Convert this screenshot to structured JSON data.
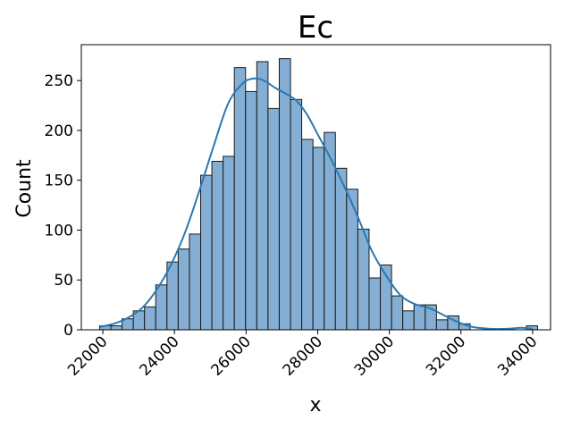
{
  "chart_data": {
    "type": "bar",
    "title": "Ec",
    "xlabel": "x",
    "ylabel": "Count",
    "xlim": [
      21400,
      34500
    ],
    "ylim": [
      0,
      286
    ],
    "xticks": [
      22000,
      24000,
      26000,
      28000,
      30000,
      32000,
      34000
    ],
    "xtick_labels": [
      "22000",
      "24000",
      "26000",
      "28000",
      "30000",
      "32000",
      "34000"
    ],
    "yticks": [
      0,
      50,
      100,
      150,
      200,
      250
    ],
    "ytick_labels": [
      "0",
      "50",
      "100",
      "150",
      "200",
      "250"
    ],
    "bin_start": 21910,
    "bin_width": 313.5,
    "values": [
      4,
      4,
      11,
      19,
      23,
      45,
      68,
      81,
      96,
      155,
      169,
      174,
      263,
      239,
      269,
      222,
      272,
      231,
      191,
      183,
      198,
      162,
      141,
      101,
      52,
      65,
      34,
      19,
      25,
      25,
      10,
      14,
      6,
      0,
      0,
      0,
      0,
      0,
      4
    ],
    "kde": [
      [
        21910,
        3
      ],
      [
        22300,
        6
      ],
      [
        22700,
        12
      ],
      [
        23100,
        22
      ],
      [
        23500,
        40
      ],
      [
        23900,
        65
      ],
      [
        24300,
        98
      ],
      [
        24700,
        140
      ],
      [
        25100,
        185
      ],
      [
        25500,
        227
      ],
      [
        25900,
        247
      ],
      [
        26200,
        252
      ],
      [
        26500,
        250
      ],
      [
        26800,
        243
      ],
      [
        27100,
        237
      ],
      [
        27400,
        230
      ],
      [
        27700,
        216
      ],
      [
        28000,
        196
      ],
      [
        28300,
        176
      ],
      [
        28700,
        147
      ],
      [
        29100,
        115
      ],
      [
        29500,
        80
      ],
      [
        29900,
        55
      ],
      [
        30300,
        35
      ],
      [
        30700,
        26
      ],
      [
        31100,
        22
      ],
      [
        31500,
        15
      ],
      [
        31900,
        8
      ],
      [
        32300,
        3
      ],
      [
        32800,
        1
      ],
      [
        33300,
        1
      ],
      [
        33700,
        2
      ],
      [
        34000,
        1
      ]
    ],
    "colors": {
      "bar_fill": "#84aed3",
      "bar_edge": "#1a1a1a",
      "kde": "#2b78b4"
    },
    "grid": false
  }
}
